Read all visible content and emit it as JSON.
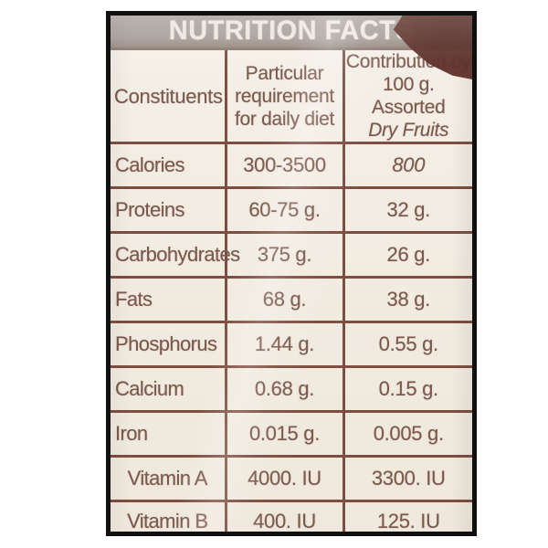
{
  "photo": {
    "title": "NUTRITION FACTS"
  },
  "table": {
    "header": {
      "constituents": "Constituents",
      "requirement_lines": [
        "Particular",
        "requirement",
        "for daily diet"
      ],
      "contribution_lines": [
        "Contribution by",
        "100 g. Assorted"
      ],
      "contribution_italic_line": "Dry Fruits"
    },
    "rows": [
      {
        "constituent": "Calories",
        "requirement": "300-3500",
        "contribution": "800",
        "contribution_italic": true
      },
      {
        "constituent": "Proteins",
        "requirement": "60-75 g.",
        "contribution": "32 g."
      },
      {
        "constituent": "Carbohydrates",
        "requirement": "375 g.",
        "contribution": "26 g."
      },
      {
        "constituent": "Fats",
        "requirement": "68 g.",
        "contribution": "38 g."
      },
      {
        "constituent": "Phosphorus",
        "requirement": "1.44 g.",
        "contribution": "0.55 g."
      },
      {
        "constituent": "Calcium",
        "requirement": "0.68 g.",
        "contribution": "0.15 g."
      },
      {
        "constituent": "Iron",
        "requirement": "0.015 g.",
        "contribution": "0.005 g."
      },
      {
        "constituent": "Vitamin A",
        "requirement": "4000. IU",
        "contribution": "3300. IU",
        "name_centered": true
      },
      {
        "constituent": "Vitamin B",
        "requirement": "400. IU",
        "contribution": "125. IU",
        "name_centered": true
      }
    ]
  },
  "colors": {
    "frame_black": "#101010",
    "header_band_gray": "#a49c96",
    "title_text": "#efe7e0",
    "label_cream_bg": "#f2ece2",
    "grid_line_brown": "#7d4e41",
    "text_brown": "#7b594e",
    "corner_patch_maroon": "#5c2d25"
  }
}
